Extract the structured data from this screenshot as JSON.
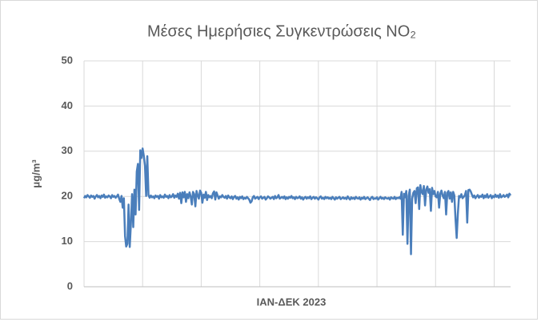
{
  "chart_data": {
    "type": "line",
    "title": "Μέσες Ημερήσιες Συγκεντρώσεις NO₂",
    "xlabel": "ΙΑΝ-ΔΕΚ 2023",
    "ylabel": "μg/m³",
    "ylim": [
      0,
      50
    ],
    "yticks": [
      0,
      10,
      20,
      30,
      40,
      50
    ],
    "grid": true,
    "categories": [
      null,
      null,
      null,
      null,
      null,
      null,
      null,
      null,
      null,
      null,
      null,
      null,
      null,
      null,
      null,
      null,
      null,
      null,
      null,
      null,
      null,
      null,
      null,
      null,
      null,
      null,
      null,
      null,
      null,
      null,
      null,
      null,
      null,
      null,
      null,
      null,
      null,
      null,
      null,
      null,
      null,
      null,
      null,
      null,
      null,
      null,
      null,
      null,
      null,
      null,
      null,
      null,
      null,
      null,
      null,
      null,
      null,
      null,
      null,
      null,
      null,
      null,
      null,
      null,
      null,
      null,
      null,
      null,
      null,
      null,
      null,
      null,
      null,
      null,
      null,
      null,
      null,
      null,
      null,
      null,
      null,
      null,
      null,
      null,
      null,
      null,
      null,
      null,
      null,
      null,
      null,
      null,
      null,
      null,
      null,
      null,
      null,
      null,
      null,
      null,
      null,
      null,
      null,
      null,
      null,
      null,
      null,
      null,
      null,
      null,
      null,
      null,
      null,
      null,
      null,
      null,
      null,
      null,
      null,
      null,
      null,
      null,
      null,
      null,
      null,
      null,
      null,
      null,
      null,
      null,
      null,
      null,
      null,
      null,
      null,
      null,
      null,
      null,
      null,
      null,
      null,
      null,
      null,
      null,
      null,
      null,
      null,
      null,
      null,
      null,
      null,
      null,
      null,
      null,
      null,
      null,
      null,
      null,
      null,
      null,
      null,
      null,
      null,
      null,
      null,
      null,
      null,
      null,
      null,
      null,
      null,
      null,
      null,
      null,
      null,
      null,
      null,
      null,
      null,
      null,
      null,
      null,
      null,
      null,
      null,
      null,
      null,
      null,
      null,
      null,
      null,
      null,
      null,
      null,
      null,
      null,
      null,
      null,
      null,
      null,
      null,
      null,
      null,
      null,
      null,
      null,
      null,
      null,
      null,
      null,
      null,
      null,
      null,
      null,
      null,
      null,
      null,
      null,
      null,
      null,
      null,
      null,
      null,
      null,
      null,
      null,
      null,
      null,
      null,
      null,
      null,
      null,
      null,
      null,
      null,
      null,
      null,
      null,
      null,
      null,
      null,
      null,
      null,
      null,
      null,
      null,
      null,
      null,
      null,
      null,
      null,
      null,
      null,
      null,
      null,
      null,
      null,
      null,
      null,
      null,
      null,
      null,
      null,
      null,
      null,
      null,
      null,
      null,
      null,
      null,
      null,
      null,
      null,
      null,
      null,
      null,
      null,
      null,
      null,
      null,
      null,
      null,
      null,
      null,
      null,
      null,
      null,
      null,
      null,
      null,
      null,
      null,
      null,
      null,
      null,
      null,
      null,
      null,
      null,
      null,
      null,
      null,
      null,
      null,
      null,
      null,
      null,
      null,
      null,
      null,
      null,
      null,
      null,
      null,
      null,
      null,
      null,
      null,
      null,
      null,
      null,
      null,
      null,
      null,
      null,
      null,
      null,
      null,
      null,
      null,
      null,
      null,
      null,
      null,
      null,
      null,
      null,
      null,
      null,
      null,
      null,
      null,
      null,
      null,
      null,
      null,
      null,
      null,
      null,
      null,
      null,
      null,
      null,
      null,
      null,
      null,
      null,
      null,
      null,
      null,
      null,
      null,
      null,
      null,
      null
    ],
    "series": [
      {
        "color": "#4a7ebb",
        "values": [
          19.6,
          20.1,
          19.8,
          20.3,
          20.0,
          19.7,
          20.2,
          19.9,
          20.1,
          19.5,
          20.0,
          20.3,
          19.8,
          20.1,
          19.6,
          20.2,
          19.9,
          20.4,
          19.7,
          20.0,
          19.8,
          20.2,
          20.0,
          19.6,
          20.3,
          19.9,
          20.1,
          19.7,
          20.0,
          20.4,
          19.5,
          18.8,
          20.1,
          17.5,
          19.6,
          11.2,
          8.9,
          9.5,
          18.2,
          8.8,
          14.0,
          20.5,
          13.2,
          21.5,
          16.0,
          25.5,
          27.2,
          17.0,
          30.2,
          28.5,
          30.6,
          29.0,
          26.8,
          20.1,
          28.9,
          20.3,
          19.7,
          20.2,
          19.8,
          20.0,
          19.6,
          20.2,
          19.9,
          20.1,
          19.5,
          20.3,
          19.8,
          20.0,
          19.7,
          20.4,
          19.9,
          20.1,
          19.6,
          20.3,
          19.8,
          20.0,
          20.5,
          19.7,
          20.2,
          19.9,
          20.6,
          19.5,
          20.8,
          18.5,
          20.9,
          19.8,
          21.0,
          18.8,
          20.5,
          19.6,
          20.9,
          20.0,
          18.2,
          21.0,
          20.5,
          17.8,
          21.2,
          20.2,
          19.5,
          21.3,
          20.8,
          18.6,
          20.4,
          19.7,
          21.0,
          19.2,
          20.3,
          19.8,
          20.1,
          19.6,
          20.7,
          21.1,
          19.3,
          20.9,
          20.2,
          19.5,
          20.0,
          19.8,
          20.3,
          19.9,
          19.7,
          20.1,
          19.5,
          20.2,
          19.8,
          19.6,
          20.0,
          19.4,
          19.9,
          20.1,
          19.5,
          19.8,
          19.3,
          19.9,
          19.6,
          20.0,
          19.4,
          19.7,
          19.5,
          19.9,
          19.6,
          19.3,
          18.6,
          18.9,
          19.8,
          20.1,
          19.5,
          19.7,
          19.9,
          19.4,
          19.8,
          20.0,
          19.5,
          19.7,
          19.9,
          19.3,
          19.6,
          20.0,
          19.8,
          19.5,
          19.7,
          19.9,
          19.4,
          20.1,
          19.6,
          19.8,
          20.3,
          19.5,
          19.7,
          19.9,
          19.6,
          20.0,
          19.4,
          19.8,
          19.5,
          19.9,
          19.7,
          20.1,
          19.6,
          19.8,
          19.4,
          19.9,
          19.6,
          19.7,
          20.0,
          19.5,
          19.8,
          19.3,
          19.7,
          19.9,
          19.5,
          19.8,
          19.6,
          20.0,
          19.4,
          19.7,
          19.9,
          19.5,
          19.8,
          19.6,
          19.3,
          19.8,
          20.0,
          19.5,
          19.7,
          19.4,
          19.9,
          19.6,
          19.8,
          19.5,
          19.7,
          19.4,
          19.9,
          19.6,
          19.3,
          19.8,
          19.5,
          19.7,
          19.9,
          19.4,
          19.6,
          19.8,
          19.5,
          19.7,
          19.4,
          20.0,
          19.6,
          19.3,
          19.8,
          19.5,
          19.7,
          19.4,
          19.9,
          19.6,
          19.5,
          19.8,
          19.3,
          19.7,
          19.5,
          19.9,
          19.4,
          19.6,
          19.8,
          19.5,
          19.2,
          19.7,
          19.9,
          19.4,
          19.6,
          19.5,
          19.8,
          19.3,
          19.6,
          19.9,
          19.5,
          19.7,
          19.4,
          19.8,
          19.6,
          19.5,
          19.7,
          19.3,
          19.8,
          19.6,
          19.5,
          19.9,
          19.4,
          19.7,
          19.6,
          19.8,
          19.5,
          21.0,
          11.5,
          20.6,
          19.8,
          21.2,
          9.5,
          20.2,
          21.5,
          7.2,
          19.5,
          20.8,
          21.2,
          18.5,
          21.8,
          22.0,
          17.2,
          22.5,
          21.0,
          20.5,
          22.3,
          18.0,
          21.5,
          22.2,
          20.8,
          21.6,
          16.8,
          21.9,
          20.5,
          21.2,
          20.0,
          19.8,
          21.0,
          17.5,
          20.6,
          21.3,
          20.2,
          19.6,
          21.0,
          16.0,
          20.8,
          21.2,
          19.5,
          20.9,
          18.8,
          21.0,
          20.2,
          15.0,
          10.8,
          16.2,
          20.1,
          19.8,
          20.5,
          19.6,
          19.9,
          20.3,
          21.2,
          14.2,
          21.4,
          21.5,
          21.1,
          20.4,
          19.8,
          20.2,
          19.6,
          20.0,
          20.3,
          19.7,
          20.1,
          19.9,
          20.4,
          19.6,
          20.2,
          19.8,
          20.5,
          19.7,
          20.0,
          20.3,
          19.6,
          20.1,
          19.8,
          20.4,
          19.9,
          20.2,
          19.7,
          20.5,
          19.8,
          20.0,
          20.3,
          19.9,
          20.1,
          20.4,
          19.8,
          20.6,
          20.2
        ]
      }
    ]
  }
}
